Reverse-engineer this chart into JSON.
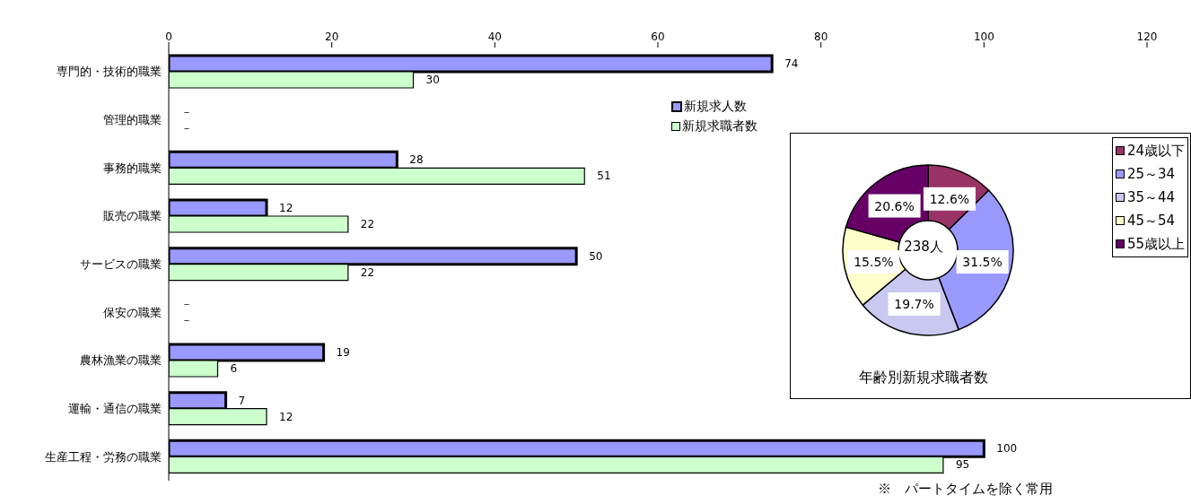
{
  "chart_data": [
    {
      "type": "bar",
      "orientation": "horizontal",
      "categories": [
        "専門的・技術的職業",
        "管理的職業",
        "事務的職業",
        "販売の職業",
        "サービスの職業",
        "保安の職業",
        "農林漁業の職業",
        "運輸・通信の職業",
        "生産工程・労務の職業"
      ],
      "series": [
        {
          "name": "新規求人数",
          "color": "#9999ff",
          "values": [
            74,
            null,
            28,
            12,
            50,
            null,
            19,
            7,
            100
          ],
          "value_labels": [
            "74",
            "－",
            "28",
            "12",
            "50",
            "－",
            "19",
            "7",
            "100"
          ]
        },
        {
          "name": "新規求職者数",
          "color": "#ccffcc",
          "values": [
            30,
            null,
            51,
            22,
            22,
            null,
            6,
            12,
            95
          ],
          "value_labels": [
            "30",
            "－",
            "51",
            "22",
            "22",
            "－",
            "6",
            "12",
            "95"
          ]
        }
      ],
      "xlim": [
        0,
        120
      ],
      "xticks": [
        0,
        20,
        40,
        60,
        80,
        100,
        120
      ],
      "grid": false,
      "legend": "top right",
      "annotations": [
        "※　パートタイムを除く常用"
      ]
    },
    {
      "type": "donut",
      "title": "年齢別新規求職者数",
      "categories": [
        "24歳以下",
        "25～34",
        "35～44",
        "45～54",
        "55歳以上"
      ],
      "values": [
        12.6,
        31.5,
        19.7,
        15.5,
        20.6
      ],
      "value_labels": [
        "12.6%",
        "31.5%",
        "19.7%",
        "15.5%",
        "20.6%"
      ],
      "colors": [
        "#993366",
        "#9999ff",
        "#c8c8f0",
        "#ffffcc",
        "#660066"
      ],
      "legend": "top right",
      "annotations": [
        "238人"
      ]
    }
  ]
}
